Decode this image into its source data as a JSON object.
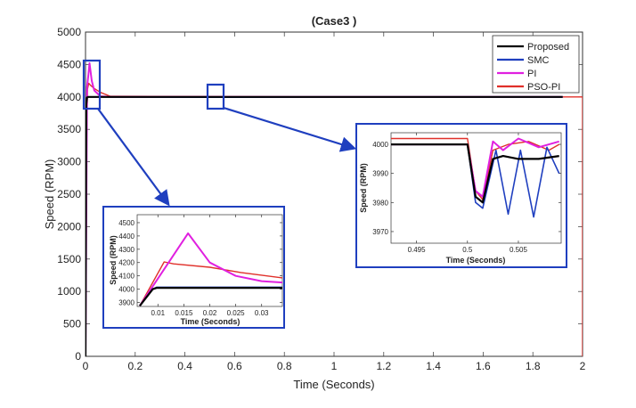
{
  "chart_data": {
    "type": "line",
    "title": "(Case3 )",
    "xlabel": "Time (Seconds)",
    "ylabel": "Speed (RPM)",
    "xlim": [
      0,
      2
    ],
    "ylim": [
      0,
      5000
    ],
    "xticks": [
      0,
      0.2,
      0.4,
      0.6,
      0.8,
      1,
      1.2,
      1.4,
      1.6,
      1.8,
      2
    ],
    "xtick_labels": [
      "0",
      "0.2",
      "0.4",
      "0.6",
      "0.8",
      "1",
      "1.2",
      "1.4",
      "1.6",
      "1.8",
      "2"
    ],
    "yticks": [
      0,
      500,
      1000,
      1500,
      2000,
      2500,
      3000,
      3500,
      4000,
      4500,
      5000
    ],
    "ytick_labels": [
      "0",
      "500",
      "1000",
      "1500",
      "2000",
      "2500",
      "3000",
      "3500",
      "4000",
      "4500",
      "5000"
    ],
    "legend_position": "top-right",
    "series": [
      {
        "name": "Proposed",
        "color": "#000000",
        "x": [
          0,
          0.003,
          0.006,
          0.01,
          1.0,
          1.92
        ],
        "y": [
          0,
          3880,
          3990,
          4000,
          4000,
          4000
        ]
      },
      {
        "name": "SMC",
        "color": "#1f3fbf",
        "x": [
          0,
          0.003,
          0.006,
          0.01,
          0.5,
          1.0,
          1.92
        ],
        "y": [
          0,
          3880,
          3990,
          4000,
          3995,
          4000,
          4000
        ]
      },
      {
        "name": "PI",
        "color": "#e020e0",
        "x": [
          0,
          0.006,
          0.012,
          0.016,
          0.025,
          0.035,
          0.06,
          0.1,
          1.0,
          1.92
        ],
        "y": [
          0,
          4150,
          4350,
          4520,
          4250,
          4100,
          4010,
          4000,
          4000,
          4000
        ]
      },
      {
        "name": "PSO-PI",
        "color": "#e0302a",
        "x": [
          0,
          0.003,
          0.008,
          0.013,
          0.02,
          0.035,
          0.06,
          0.1,
          1.0,
          2.0,
          2.0
        ],
        "y": [
          0,
          2950,
          4120,
          4210,
          4180,
          4130,
          4070,
          4010,
          4000,
          4000,
          0
        ]
      }
    ],
    "insets": [
      {
        "name": "zoom-startup",
        "ylabel": "Speed (RPM)",
        "xlabel": "Time (Seconds)",
        "xlim": [
          0.006,
          0.034
        ],
        "ylim": [
          3870,
          4560
        ],
        "xticks": [
          0.01,
          0.015,
          0.02,
          0.025,
          0.03
        ],
        "xtick_labels": [
          "0.01",
          "0.015",
          "0.02",
          "0.025",
          "0.03"
        ],
        "yticks": [
          3900,
          4000,
          4100,
          4200,
          4300,
          4400,
          4500
        ],
        "ytick_labels": [
          "3900",
          "4000",
          "4100",
          "4200",
          "4300",
          "4400",
          "4500"
        ],
        "series": [
          {
            "name": "Proposed",
            "x": [
              0.0065,
              0.009,
              0.0098,
              0.034
            ],
            "y": [
              3875,
              4000,
              4010,
              4010
            ]
          },
          {
            "name": "SMC",
            "x": [
              0.0065,
              0.009,
              0.0098,
              0.034
            ],
            "y": [
              3875,
              4000,
              4015,
              4015
            ]
          },
          {
            "name": "PI",
            "x": [
              0.0065,
              0.0158,
              0.02,
              0.025,
              0.03,
              0.034
            ],
            "y": [
              3875,
              4420,
              4200,
              4100,
              4060,
              4050
            ]
          },
          {
            "name": "PSO-PI",
            "x": [
              0.0065,
              0.0112,
              0.013,
              0.02,
              0.026,
              0.034
            ],
            "y": [
              3875,
              4205,
              4190,
              4165,
              4125,
              4085
            ]
          }
        ]
      },
      {
        "name": "zoom-disturbance",
        "ylabel": "Speed (RPM)",
        "xlabel": "Time (Seconds)",
        "xlim": [
          0.4925,
          0.5092
        ],
        "ylim": [
          3966,
          4004
        ],
        "xticks": [
          0.495,
          0.5,
          0.505
        ],
        "xtick_labels": [
          "0.495",
          "0.5",
          "0.505"
        ],
        "yticks": [
          3970,
          3980,
          3990,
          4000
        ],
        "ytick_labels": [
          "3970",
          "3980",
          "3990",
          "4000"
        ],
        "series": [
          {
            "name": "Proposed",
            "x": [
              0.4925,
              0.5,
              0.5008,
              0.5015,
              0.5025,
              0.5035,
              0.505,
              0.507,
              0.509
            ],
            "y": [
              4000,
              4000,
              3982,
              3980,
              3995,
              3996,
              3995,
              3995,
              3996
            ]
          },
          {
            "name": "SMC",
            "x": [
              0.4925,
              0.5,
              0.5008,
              0.5015,
              0.5028,
              0.504,
              0.5052,
              0.5065,
              0.5078,
              0.509
            ],
            "y": [
              4000,
              4000,
              3980,
              3978,
              3998,
              3976,
              3998,
              3975,
              3999,
              3990
            ]
          },
          {
            "name": "PI",
            "x": [
              0.4925,
              0.5,
              0.5008,
              0.5015,
              0.5025,
              0.5035,
              0.505,
              0.507,
              0.509
            ],
            "y": [
              4000,
              4000,
              3984,
              3982,
              4001,
              3998,
              4002,
              3999,
              4001
            ]
          },
          {
            "name": "PSO-PI",
            "x": [
              0.4925,
              0.5,
              0.5008,
              0.5015,
              0.5025,
              0.504,
              0.506,
              0.508,
              0.509
            ],
            "y": [
              4002,
              4002,
              3984,
              3981,
              3998,
              4000,
              4001,
              3998,
              4000
            ]
          }
        ]
      }
    ],
    "zoom_regions": [
      {
        "target": "zoom-startup",
        "xrange": [
          0.0,
          0.06
        ],
        "yrange": [
          3820,
          4580
        ]
      },
      {
        "target": "zoom-disturbance",
        "xrange": [
          0.49,
          0.55
        ],
        "yrange": [
          3820,
          4180
        ]
      }
    ]
  }
}
